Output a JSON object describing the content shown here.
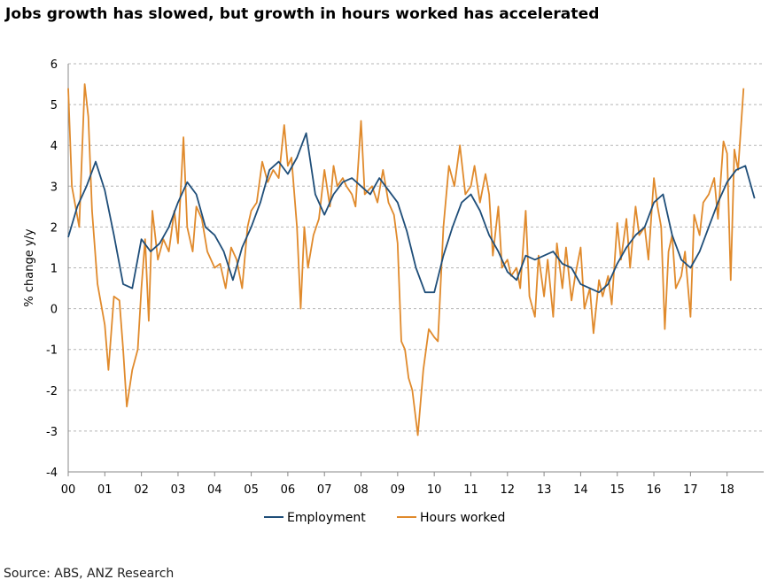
{
  "title": "Jobs growth has slowed, but growth in hours worked has accelerated",
  "source": "Source: ABS, ANZ Research",
  "chart_data": {
    "type": "line",
    "ylabel": "% change y/y",
    "xlabel": "",
    "ylim": [
      -4,
      6
    ],
    "yticks": [
      "6",
      "5",
      "4",
      "3",
      "2",
      "1",
      "0",
      "-1",
      "-2",
      "-3",
      "-4"
    ],
    "xlim": [
      2000,
      2019
    ],
    "xticks": [
      "00",
      "01",
      "02",
      "03",
      "04",
      "05",
      "06",
      "07",
      "08",
      "09",
      "10",
      "11",
      "12",
      "13",
      "14",
      "15",
      "16",
      "17",
      "18"
    ],
    "grid": "horizontal dashed",
    "legend": "bottom",
    "series": [
      {
        "name": "Employment",
        "color": "#1f4e79",
        "points": [
          [
            2000.0,
            1.75
          ],
          [
            2000.25,
            2.5
          ],
          [
            2000.5,
            3.0
          ],
          [
            2000.75,
            3.6
          ],
          [
            2001.0,
            2.9
          ],
          [
            2001.25,
            1.8
          ],
          [
            2001.5,
            0.6
          ],
          [
            2001.75,
            0.5
          ],
          [
            2002.0,
            1.7
          ],
          [
            2002.25,
            1.4
          ],
          [
            2002.5,
            1.6
          ],
          [
            2002.75,
            2.0
          ],
          [
            2003.0,
            2.6
          ],
          [
            2003.25,
            3.1
          ],
          [
            2003.5,
            2.8
          ],
          [
            2003.75,
            2.0
          ],
          [
            2004.0,
            1.8
          ],
          [
            2004.25,
            1.4
          ],
          [
            2004.5,
            0.7
          ],
          [
            2004.75,
            1.5
          ],
          [
            2005.0,
            2.0
          ],
          [
            2005.25,
            2.6
          ],
          [
            2005.5,
            3.4
          ],
          [
            2005.75,
            3.6
          ],
          [
            2006.0,
            3.3
          ],
          [
            2006.25,
            3.7
          ],
          [
            2006.5,
            4.3
          ],
          [
            2006.75,
            2.8
          ],
          [
            2007.0,
            2.3
          ],
          [
            2007.25,
            2.8
          ],
          [
            2007.5,
            3.1
          ],
          [
            2007.75,
            3.2
          ],
          [
            2008.0,
            3.0
          ],
          [
            2008.25,
            2.8
          ],
          [
            2008.5,
            3.2
          ],
          [
            2008.75,
            2.9
          ],
          [
            2009.0,
            2.6
          ],
          [
            2009.25,
            1.9
          ],
          [
            2009.5,
            1.0
          ],
          [
            2009.75,
            0.4
          ],
          [
            2010.0,
            0.4
          ],
          [
            2010.25,
            1.3
          ],
          [
            2010.5,
            2.0
          ],
          [
            2010.75,
            2.6
          ],
          [
            2011.0,
            2.8
          ],
          [
            2011.25,
            2.4
          ],
          [
            2011.5,
            1.8
          ],
          [
            2011.75,
            1.4
          ],
          [
            2012.0,
            0.9
          ],
          [
            2012.25,
            0.7
          ],
          [
            2012.5,
            1.3
          ],
          [
            2012.75,
            1.2
          ],
          [
            2013.0,
            1.3
          ],
          [
            2013.25,
            1.4
          ],
          [
            2013.5,
            1.1
          ],
          [
            2013.75,
            1.0
          ],
          [
            2014.0,
            0.6
          ],
          [
            2014.25,
            0.5
          ],
          [
            2014.5,
            0.4
          ],
          [
            2014.75,
            0.6
          ],
          [
            2015.0,
            1.1
          ],
          [
            2015.25,
            1.5
          ],
          [
            2015.5,
            1.8
          ],
          [
            2015.75,
            2.0
          ],
          [
            2016.0,
            2.6
          ],
          [
            2016.25,
            2.8
          ],
          [
            2016.5,
            1.8
          ],
          [
            2016.75,
            1.2
          ],
          [
            2017.0,
            1.0
          ],
          [
            2017.25,
            1.4
          ],
          [
            2017.5,
            2.0
          ],
          [
            2017.75,
            2.6
          ],
          [
            2018.0,
            3.1
          ],
          [
            2018.25,
            3.4
          ],
          [
            2018.5,
            3.5
          ],
          [
            2018.75,
            2.7
          ]
        ]
      },
      {
        "name": "Hours worked",
        "color": "#e08a2c",
        "points": [
          [
            2000.0,
            5.4
          ],
          [
            2000.1,
            3.0
          ],
          [
            2000.3,
            2.0
          ],
          [
            2000.45,
            5.5
          ],
          [
            2000.55,
            4.7
          ],
          [
            2000.65,
            2.4
          ],
          [
            2000.8,
            0.6
          ],
          [
            2001.0,
            -0.4
          ],
          [
            2001.1,
            -1.5
          ],
          [
            2001.25,
            0.3
          ],
          [
            2001.4,
            0.2
          ],
          [
            2001.5,
            -1.0
          ],
          [
            2001.6,
            -2.4
          ],
          [
            2001.75,
            -1.5
          ],
          [
            2001.9,
            -1.0
          ],
          [
            2002.0,
            0.5
          ],
          [
            2002.1,
            1.7
          ],
          [
            2002.2,
            -0.3
          ],
          [
            2002.3,
            2.4
          ],
          [
            2002.45,
            1.2
          ],
          [
            2002.6,
            1.7
          ],
          [
            2002.75,
            1.4
          ],
          [
            2002.9,
            2.4
          ],
          [
            2003.0,
            1.6
          ],
          [
            2003.15,
            4.2
          ],
          [
            2003.25,
            2.0
          ],
          [
            2003.4,
            1.4
          ],
          [
            2003.5,
            2.5
          ],
          [
            2003.65,
            2.2
          ],
          [
            2003.8,
            1.4
          ],
          [
            2004.0,
            1.0
          ],
          [
            2004.15,
            1.1
          ],
          [
            2004.3,
            0.5
          ],
          [
            2004.45,
            1.5
          ],
          [
            2004.6,
            1.2
          ],
          [
            2004.75,
            0.5
          ],
          [
            2004.9,
            2.0
          ],
          [
            2005.0,
            2.4
          ],
          [
            2005.15,
            2.6
          ],
          [
            2005.3,
            3.6
          ],
          [
            2005.45,
            3.1
          ],
          [
            2005.6,
            3.4
          ],
          [
            2005.75,
            3.2
          ],
          [
            2005.9,
            4.5
          ],
          [
            2006.0,
            3.5
          ],
          [
            2006.1,
            3.7
          ],
          [
            2006.25,
            2.0
          ],
          [
            2006.35,
            0.0
          ],
          [
            2006.45,
            2.0
          ],
          [
            2006.55,
            1.0
          ],
          [
            2006.7,
            1.8
          ],
          [
            2006.85,
            2.2
          ],
          [
            2007.0,
            3.4
          ],
          [
            2007.15,
            2.5
          ],
          [
            2007.25,
            3.5
          ],
          [
            2007.35,
            3.0
          ],
          [
            2007.5,
            3.2
          ],
          [
            2007.6,
            3.0
          ],
          [
            2007.75,
            2.8
          ],
          [
            2007.85,
            2.5
          ],
          [
            2008.0,
            4.6
          ],
          [
            2008.1,
            2.8
          ],
          [
            2008.2,
            2.9
          ],
          [
            2008.3,
            3.0
          ],
          [
            2008.45,
            2.6
          ],
          [
            2008.6,
            3.4
          ],
          [
            2008.75,
            2.6
          ],
          [
            2008.9,
            2.3
          ],
          [
            2009.0,
            1.6
          ],
          [
            2009.1,
            -0.8
          ],
          [
            2009.2,
            -1.0
          ],
          [
            2009.3,
            -1.7
          ],
          [
            2009.4,
            -2.0
          ],
          [
            2009.55,
            -3.1
          ],
          [
            2009.7,
            -1.5
          ],
          [
            2009.85,
            -0.5
          ],
          [
            2010.0,
            -0.7
          ],
          [
            2010.1,
            -0.8
          ],
          [
            2010.25,
            2.0
          ],
          [
            2010.4,
            3.5
          ],
          [
            2010.55,
            3.0
          ],
          [
            2010.7,
            4.0
          ],
          [
            2010.85,
            2.8
          ],
          [
            2011.0,
            3.0
          ],
          [
            2011.1,
            3.5
          ],
          [
            2011.25,
            2.6
          ],
          [
            2011.4,
            3.3
          ],
          [
            2011.5,
            2.8
          ],
          [
            2011.6,
            1.3
          ],
          [
            2011.75,
            2.5
          ],
          [
            2011.85,
            1.0
          ],
          [
            2012.0,
            1.2
          ],
          [
            2012.1,
            0.8
          ],
          [
            2012.25,
            1.0
          ],
          [
            2012.35,
            0.5
          ],
          [
            2012.5,
            2.4
          ],
          [
            2012.6,
            0.3
          ],
          [
            2012.75,
            -0.2
          ],
          [
            2012.85,
            1.3
          ],
          [
            2013.0,
            0.3
          ],
          [
            2013.1,
            1.2
          ],
          [
            2013.25,
            -0.2
          ],
          [
            2013.35,
            1.6
          ],
          [
            2013.5,
            0.5
          ],
          [
            2013.6,
            1.5
          ],
          [
            2013.75,
            0.2
          ],
          [
            2013.85,
            0.8
          ],
          [
            2014.0,
            1.5
          ],
          [
            2014.1,
            0.0
          ],
          [
            2014.25,
            0.5
          ],
          [
            2014.35,
            -0.6
          ],
          [
            2014.5,
            0.7
          ],
          [
            2014.6,
            0.3
          ],
          [
            2014.75,
            0.8
          ],
          [
            2014.85,
            0.1
          ],
          [
            2015.0,
            2.1
          ],
          [
            2015.1,
            1.2
          ],
          [
            2015.25,
            2.2
          ],
          [
            2015.35,
            1.0
          ],
          [
            2015.5,
            2.5
          ],
          [
            2015.6,
            1.8
          ],
          [
            2015.75,
            2.0
          ],
          [
            2015.85,
            1.2
          ],
          [
            2016.0,
            3.2
          ],
          [
            2016.1,
            2.5
          ],
          [
            2016.2,
            2.0
          ],
          [
            2016.3,
            -0.5
          ],
          [
            2016.4,
            1.4
          ],
          [
            2016.5,
            1.8
          ],
          [
            2016.6,
            0.5
          ],
          [
            2016.75,
            0.8
          ],
          [
            2016.85,
            1.4
          ],
          [
            2017.0,
            -0.2
          ],
          [
            2017.1,
            2.3
          ],
          [
            2017.25,
            1.8
          ],
          [
            2017.35,
            2.6
          ],
          [
            2017.5,
            2.8
          ],
          [
            2017.65,
            3.2
          ],
          [
            2017.75,
            2.2
          ],
          [
            2017.9,
            4.1
          ],
          [
            2018.0,
            3.8
          ],
          [
            2018.1,
            0.7
          ],
          [
            2018.2,
            3.9
          ],
          [
            2018.3,
            3.4
          ],
          [
            2018.45,
            5.4
          ]
        ]
      }
    ]
  }
}
